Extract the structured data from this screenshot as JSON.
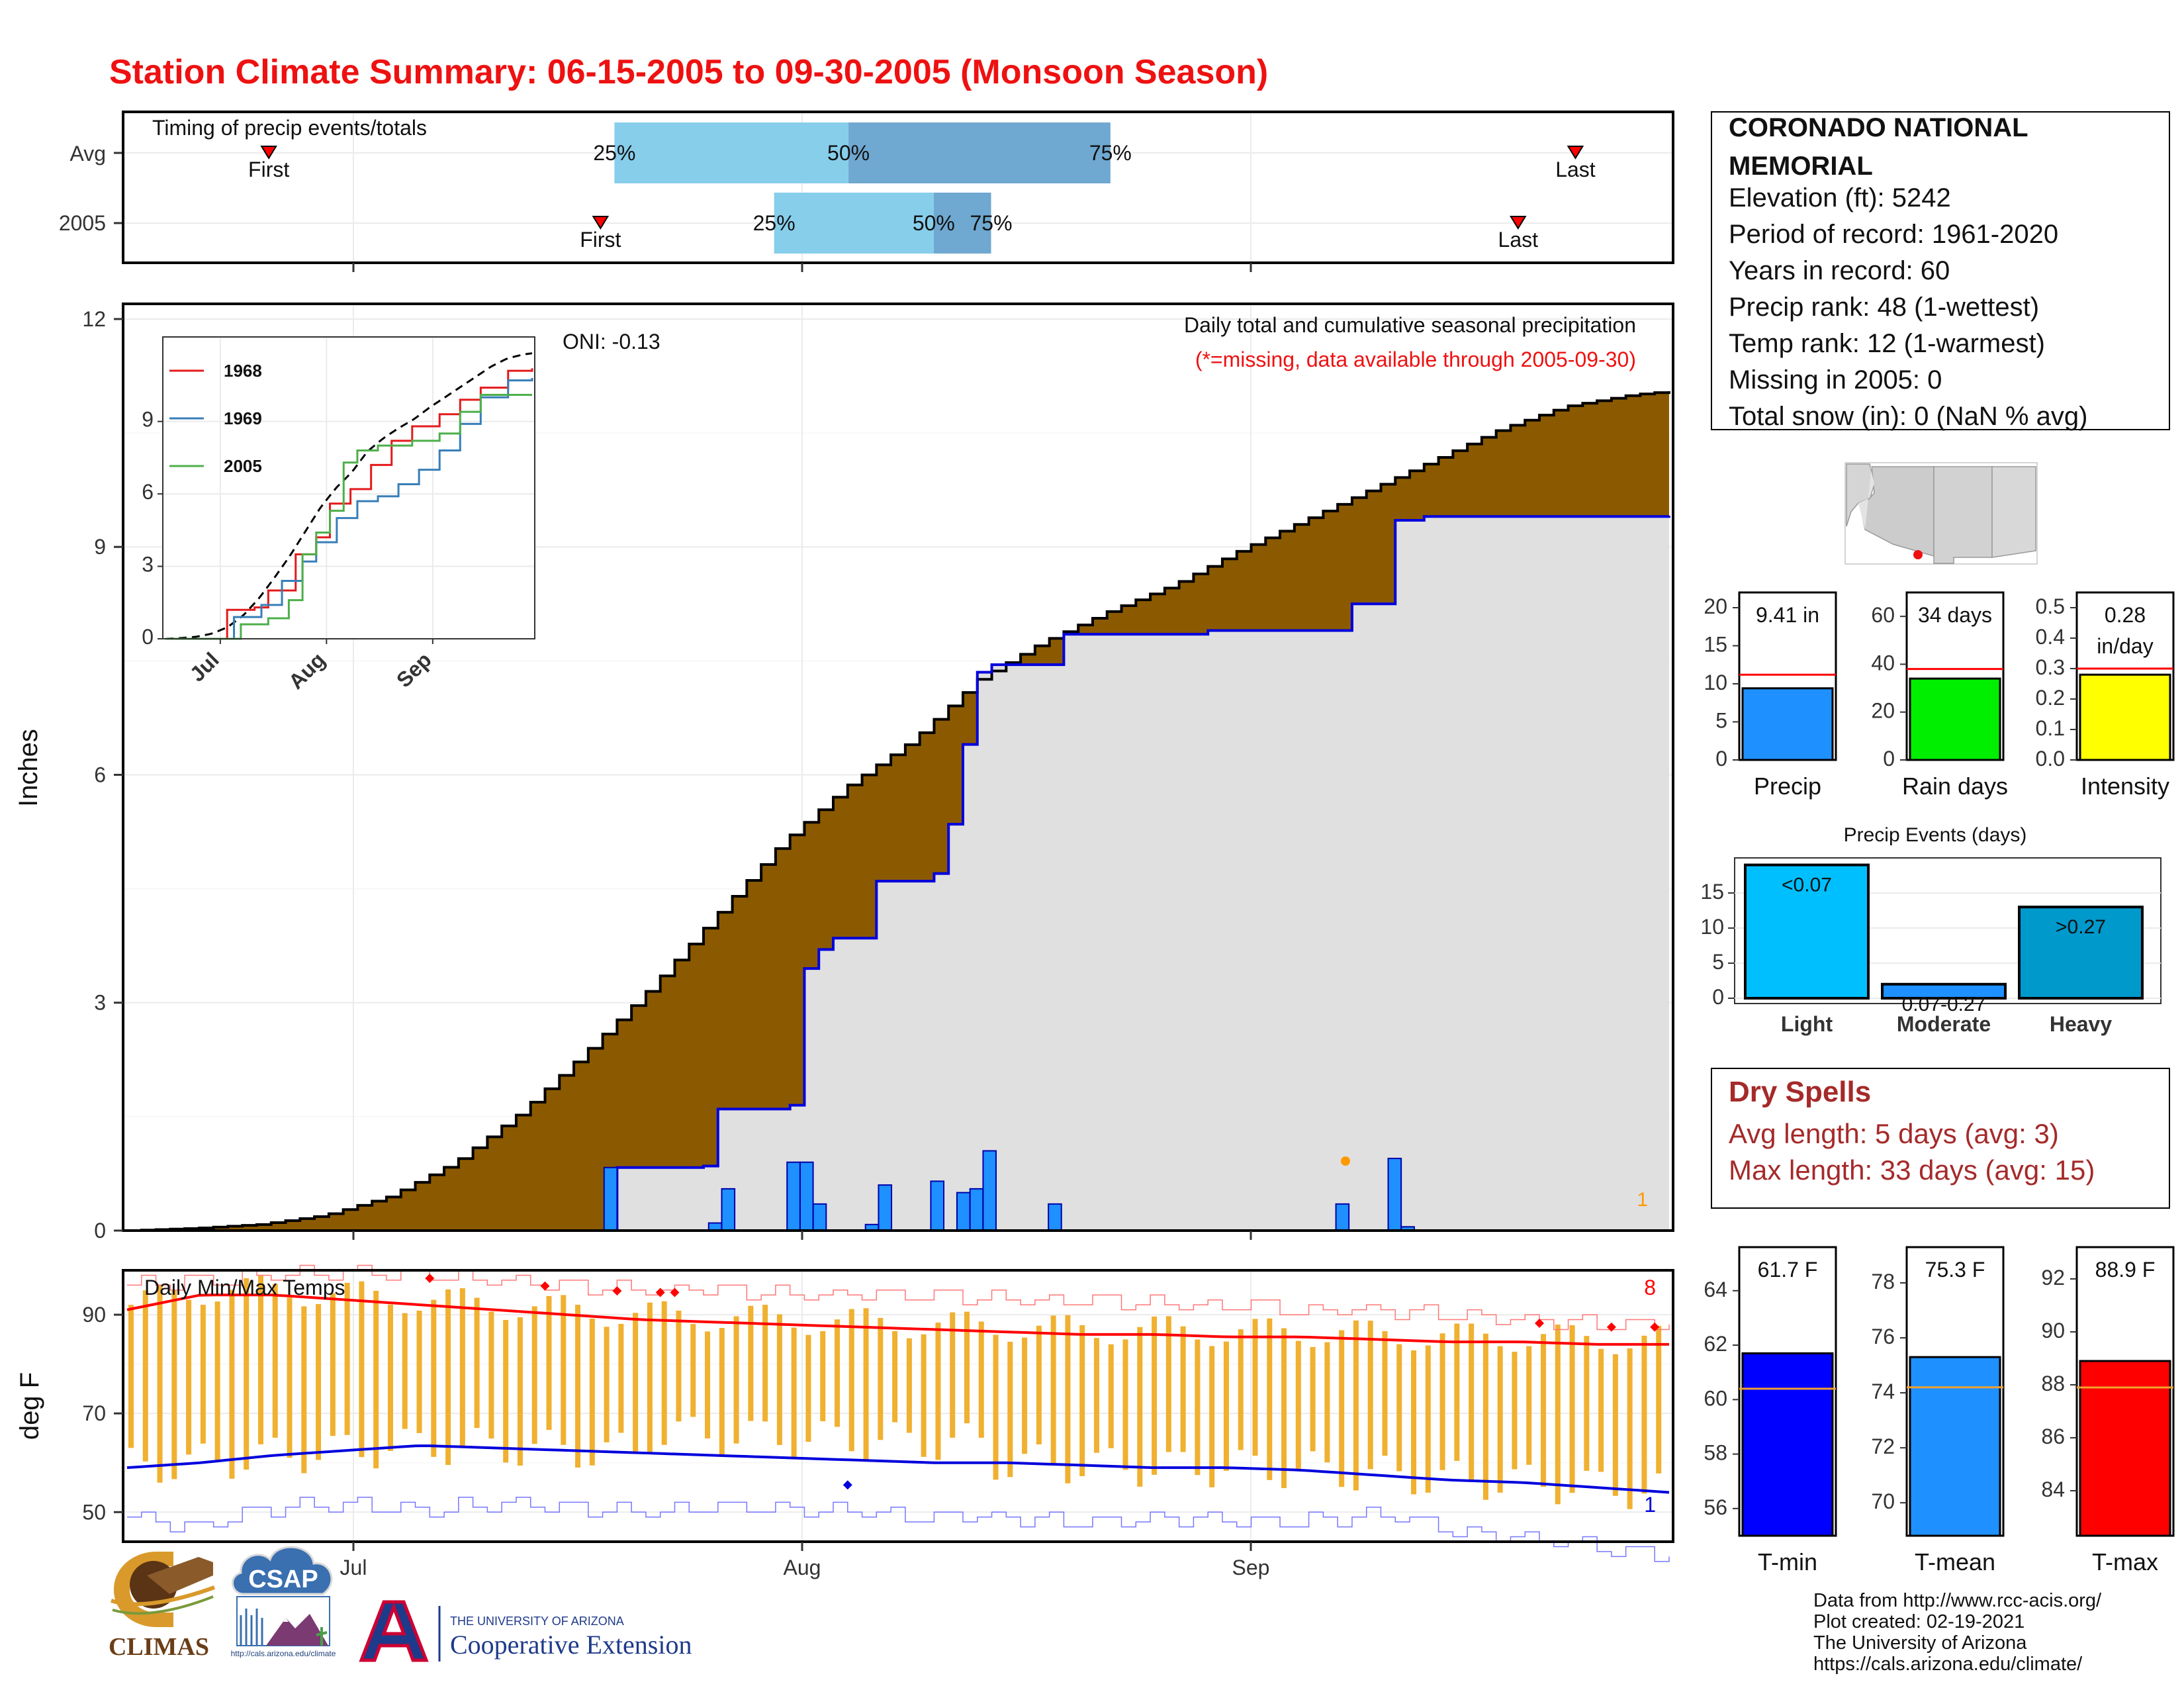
{
  "title": "Station Climate Summary: 06-15-2005 to 09-30-2005 (Monsoon Season)",
  "timing_panel": {
    "label": "Timing of precip events/totals",
    "rows": [
      {
        "name": "Avg",
        "first_label": "First",
        "last_label": "Last",
        "first": 0.094,
        "last": 0.937,
        "p25": 0.317,
        "p50": 0.468,
        "p75": 0.637,
        "labels": [
          "25%",
          "50%",
          "75%"
        ]
      },
      {
        "name": "2005",
        "first_label": "First",
        "last_label": "Last",
        "first": 0.308,
        "last": 0.9,
        "p25": 0.42,
        "p50": 0.523,
        "p75": 0.56,
        "labels": [
          "25%",
          "50%",
          "75%"
        ]
      }
    ]
  },
  "main_panel": {
    "ylabel": "Inches",
    "annotation_title": "Daily total and cumulative seasonal precipitation",
    "annotation_note": "(*=missing, data available through 2005-09-30)",
    "oni": "ONI: -0.13",
    "corner_count": "1"
  },
  "inset": {
    "legend": [
      "1968",
      "1969",
      "2005"
    ],
    "colors": [
      "#e41a1c",
      "#377eb8",
      "#4daf4a"
    ],
    "x_ticks": [
      "Jul",
      "Aug",
      "Sep"
    ],
    "y_ticks": [
      "0",
      "3",
      "6",
      "9"
    ]
  },
  "temp_panel": {
    "label": "Daily Min/Max Temps",
    "ylabel": "deg F",
    "corner_high": "8",
    "corner_low": "1",
    "y_ticks": [
      "50",
      "70",
      "90"
    ]
  },
  "x_axis_ticks": [
    "Jul",
    "Aug",
    "Sep"
  ],
  "station_info": {
    "name": "CORONADO NATIONAL MEMORIAL",
    "lines": [
      "Elevation (ft): 5242",
      "Period of record: 1961-2020",
      "Years in record: 60",
      "Precip rank: 48 (1-wettest)",
      "Temp rank: 12 (1-warmest)",
      "Missing in 2005: 0",
      "Total snow (in): 0 (NaN % avg)"
    ]
  },
  "mini_bars": [
    {
      "label": "Precip",
      "value_label": "9.41 in",
      "value": 9.41,
      "avg": 11.2,
      "max": 22,
      "ticks": [
        "0",
        "5",
        "10",
        "15",
        "20"
      ],
      "color": "#1e90ff"
    },
    {
      "label": "Rain days",
      "value_label": "34 days",
      "value": 34,
      "avg": 38,
      "max": 70,
      "ticks": [
        "0",
        "20",
        "40",
        "60"
      ],
      "color": "#00ee00"
    },
    {
      "label": "Intensity",
      "value_label": "0.28 in/day",
      "value_label_1": "0.28",
      "value_label_2": "in/day",
      "value": 0.28,
      "avg": 0.3,
      "max": 0.55,
      "ticks": [
        "0.0",
        "0.1",
        "0.2",
        "0.3",
        "0.4",
        "0.5"
      ],
      "color": "#ffff00"
    }
  ],
  "events_chart": {
    "title": "Precip Events (days)",
    "categories": [
      "Light",
      "Moderate",
      "Heavy"
    ],
    "bar_labels": [
      "<0.07",
      "0.07-0.27",
      ">0.27"
    ],
    "values": [
      19,
      2,
      13
    ],
    "ticks": [
      "0",
      "5",
      "10",
      "15"
    ],
    "colors": [
      "#00bfff",
      "#1e90ff",
      "#0099cc"
    ]
  },
  "dry_spells": {
    "title": "Dry Spells",
    "avg_line": "Avg length: 5 days (avg: 3)",
    "max_line": "Max length: 33 days (avg: 15)"
  },
  "temp_bars": [
    {
      "label": "T-min",
      "value_label": "61.7 F",
      "value": 61.7,
      "avg": 60.4,
      "min": 55,
      "max": 65.6,
      "ticks": [
        "56",
        "58",
        "60",
        "62",
        "64"
      ],
      "color": "#0000ff"
    },
    {
      "label": "T-mean",
      "value_label": "75.3 F",
      "value": 75.3,
      "avg": 74.2,
      "min": 68.8,
      "max": 79.3,
      "ticks": [
        "70",
        "72",
        "74",
        "76",
        "78"
      ],
      "color": "#1e90ff"
    },
    {
      "label": "T-max",
      "value_label": "88.9 F",
      "value": 88.9,
      "avg": 87.9,
      "min": 82.3,
      "max": 93.2,
      "ticks": [
        "84",
        "86",
        "88",
        "90",
        "92"
      ],
      "color": "#ff0000"
    }
  ],
  "credits": [
    "Data from http://www.rcc-acis.org/",
    "Plot created: 02-19-2021",
    "The University of Arizona",
    "https://cals.arizona.edu/climate/"
  ],
  "logos": {
    "climas": "CLIMAS",
    "csap": "CSAP",
    "csap_url": "http://cals.arizona.edu/climate",
    "ua_letter": "A",
    "ua_line1": "THE UNIVERSITY OF ARIZONA",
    "ua_line2": "Cooperative Extension"
  },
  "chart_data": {
    "type": "area",
    "title": "Station Climate Summary: 06-15-2005 to 09-30-2005 (Monsoon Season)",
    "ylabel": "Inches",
    "ylim": [
      0,
      12.2
    ],
    "x_range": [
      "2005-06-15",
      "2005-09-30"
    ],
    "series": [
      {
        "name": "avg cumulative",
        "points": [
          [
            0,
            0
          ],
          [
            5,
            0.03
          ],
          [
            10,
            0.08
          ],
          [
            15,
            0.2
          ],
          [
            20,
            0.45
          ],
          [
            25,
            0.9
          ],
          [
            30,
            1.55
          ],
          [
            35,
            2.35
          ],
          [
            40,
            3.2
          ],
          [
            45,
            4.15
          ],
          [
            50,
            5.1
          ],
          [
            55,
            5.85
          ],
          [
            60,
            6.45
          ],
          [
            65,
            7.25
          ],
          [
            70,
            7.75
          ],
          [
            75,
            8.15
          ],
          [
            80,
            8.5
          ],
          [
            85,
            8.95
          ],
          [
            90,
            9.35
          ],
          [
            95,
            9.75
          ],
          [
            100,
            10.15
          ],
          [
            105,
            10.55
          ],
          [
            110,
            10.85
          ],
          [
            115,
            11.0
          ],
          [
            118,
            11.05
          ]
        ]
      },
      {
        "name": "2005 cumulative",
        "points": [
          [
            0,
            0
          ],
          [
            36,
            0
          ],
          [
            37,
            0.83
          ],
          [
            44,
            0.85
          ],
          [
            45,
            1.6
          ],
          [
            50,
            1.65
          ],
          [
            51,
            3.45
          ],
          [
            52,
            3.7
          ],
          [
            54,
            3.85
          ],
          [
            57,
            4.6
          ],
          [
            61,
            4.7
          ],
          [
            62,
            5.35
          ],
          [
            63,
            6.4
          ],
          [
            64,
            7.35
          ],
          [
            66,
            7.45
          ],
          [
            71,
            7.85
          ],
          [
            82,
            7.9
          ],
          [
            93,
            8.25
          ],
          [
            97,
            9.35
          ],
          [
            99,
            9.4
          ],
          [
            118,
            9.41
          ]
        ]
      },
      {
        "name": "2005 daily",
        "points": [
          [
            37,
            0.83
          ],
          [
            45,
            0.1
          ],
          [
            46,
            0.55
          ],
          [
            51,
            0.9
          ],
          [
            52,
            0.9
          ],
          [
            53,
            0.35
          ],
          [
            57,
            0.08
          ],
          [
            58,
            0.6
          ],
          [
            62,
            0.65
          ],
          [
            64,
            0.5
          ],
          [
            65,
            0.55
          ],
          [
            66,
            1.05
          ],
          [
            71,
            0.35
          ],
          [
            93,
            0.35
          ],
          [
            97,
            0.95
          ],
          [
            98,
            0.05
          ]
        ]
      }
    ],
    "temperature": {
      "ylabel": "deg F",
      "ylim": [
        44,
        99
      ],
      "avg_max": [
        91,
        94,
        94,
        93,
        92,
        91,
        90,
        89,
        88.5,
        88,
        87.5,
        87,
        86.5,
        86,
        86,
        85.5,
        85.5,
        85,
        84.5,
        84.5,
        84,
        84
      ],
      "avg_min": [
        59,
        60,
        61.5,
        62.5,
        63.5,
        63,
        62.5,
        62,
        61.5,
        61,
        60.5,
        60,
        60,
        59.5,
        59,
        59,
        58.5,
        57.5,
        56.5,
        56,
        55,
        54
      ],
      "record_max": [
        96,
        97,
        98,
        99,
        98,
        97,
        96,
        95,
        95,
        94,
        94,
        94,
        93,
        93,
        92,
        92,
        91,
        91,
        90,
        89,
        88,
        88
      ],
      "record_min": [
        49,
        47,
        51,
        52,
        50,
        52,
        51,
        50,
        51,
        51,
        50,
        49,
        49,
        48,
        49,
        48,
        48,
        50,
        46,
        45,
        43,
        41
      ]
    }
  }
}
